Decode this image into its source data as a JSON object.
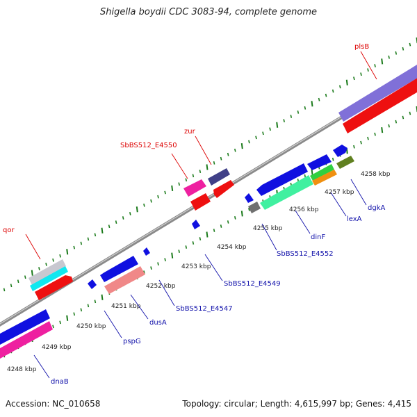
{
  "title": "Shigella boydii CDC 3083-94, complete genome",
  "footer": {
    "accession": "Accession: NC_010658",
    "summary": "Topology: circular; Length: 4,615,997 bp; Genes: 4,415"
  },
  "kbp_labels": [
    "4248 kbp",
    "4249 kbp",
    "4250 kbp",
    "4251 kbp",
    "4252 kbp",
    "4253 kbp",
    "4254 kbp",
    "4255 kbp",
    "4256 kbp",
    "4257 kbp",
    "4258 kbp"
  ],
  "gene_labels": {
    "qor": "qor",
    "SbBS512_E4550": "SbBS512_E4550",
    "zur": "zur",
    "plsB": "plsB",
    "dnaB": "dnaB",
    "pspG": "pspG",
    "dusA": "dusA",
    "SbBS512_E4547": "SbBS512_E4547",
    "SbBS512_E4549": "SbBS512_E4549",
    "SbBS512_E4552": "SbBS512_E4552",
    "dinF": "dinF",
    "lexA": "lexA",
    "dgkA": "dgkA"
  },
  "colors": {
    "backbone": "#8a8a8a",
    "tick": "#1a7a1a",
    "blue": "#1010e0",
    "red": "#ee1010",
    "magenta": "#ee20a0",
    "pink": "#f08888",
    "cyan": "#10e8f0",
    "silver": "#c8c8d0",
    "lavender": "#8070d8",
    "navy": "#404088",
    "mint": "#40f0a0",
    "green": "#30d040",
    "orange": "#f09010",
    "olive": "#608020",
    "gray": "#707070",
    "label_red": "#dd0000",
    "label_blue": "#1010aa"
  }
}
